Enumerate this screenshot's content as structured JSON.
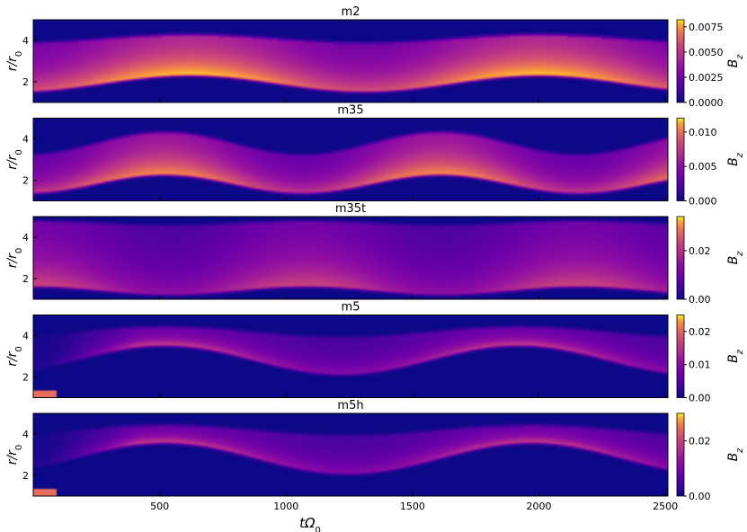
{
  "chart_data": [
    {
      "type": "heatmap",
      "title": "m2",
      "xlabel": "",
      "ylabel": "r/r0",
      "colorbar_label": "Bz",
      "colormap": "plasma",
      "xlim": [
        0,
        2510
      ],
      "ylim": [
        1.0,
        5.0
      ],
      "yticks": [
        2,
        4
      ],
      "colorbar_range": [
        0,
        0.0082
      ],
      "colorbar_ticks": [
        "0.0075",
        "0.0050",
        "0.0025",
        "0.0000"
      ],
      "colorbar_tick_values": [
        0.0075,
        0.005,
        0.0025,
        0.0
      ],
      "ridge": {
        "period": 1380,
        "peak_t": 620,
        "lower_edge_mean": 2.0,
        "lower_edge_amp": 0.4,
        "upper_edge_mean": 4.0,
        "upper_edge_amp": 0.2,
        "peak_strength": 0.95
      }
    },
    {
      "type": "heatmap",
      "title": "m35",
      "xlabel": "",
      "ylabel": "r/r0",
      "colorbar_label": "Bz",
      "colormap": "plasma",
      "xlim": [
        0,
        2510
      ],
      "ylim": [
        1.0,
        5.0
      ],
      "yticks": [
        2,
        4
      ],
      "colorbar_range": [
        0,
        0.012
      ],
      "colorbar_ticks": [
        "0.010",
        "0.005",
        "0.000"
      ],
      "colorbar_tick_values": [
        0.01,
        0.005,
        0.0
      ],
      "ridge": {
        "period": 1090,
        "peak_t": 520,
        "lower_edge_mean": 1.9,
        "lower_edge_amp": 0.45,
        "upper_edge_mean": 3.7,
        "upper_edge_amp": 0.55,
        "peak_strength": 0.8
      }
    },
    {
      "type": "heatmap",
      "title": "m35t",
      "xlabel": "",
      "ylabel": "r/r0",
      "colorbar_label": "Bz",
      "colormap": "plasma",
      "xlim": [
        0,
        2510
      ],
      "ylim": [
        1.0,
        5.0
      ],
      "yticks": [
        2,
        4
      ],
      "colorbar_range": [
        0,
        0.034
      ],
      "colorbar_ticks": [
        "0.02",
        "0.00"
      ],
      "colorbar_tick_values": [
        0.02,
        0.0
      ],
      "ridge": {
        "period": 1080,
        "peak_t": 1080,
        "lower_edge_mean": 1.5,
        "lower_edge_amp": 0.2,
        "upper_edge_mean": 4.6,
        "upper_edge_amp": 0.1,
        "peak_strength": 0.55
      }
    },
    {
      "type": "heatmap",
      "title": "m5",
      "xlabel": "",
      "ylabel": "r/r0",
      "colorbar_label": "Bz",
      "colormap": "plasma",
      "xlim": [
        0,
        2510
      ],
      "ylim": [
        1.0,
        5.0
      ],
      "yticks": [
        2,
        4
      ],
      "colorbar_range": [
        0,
        0.025
      ],
      "colorbar_ticks": [
        "0.02",
        "0.01",
        "0.00"
      ],
      "colorbar_tick_values": [
        0.02,
        0.01,
        0.0
      ],
      "ridge": {
        "period": 1400,
        "peak_t": 520,
        "lower_edge_mean": 2.9,
        "lower_edge_amp": 0.7,
        "upper_edge_mean": 4.1,
        "upper_edge_amp": 0.25,
        "peak_strength": 0.5
      }
    },
    {
      "type": "heatmap",
      "title": "m5h",
      "xlabel": "tΩ0",
      "ylabel": "r/r0",
      "colorbar_label": "Bz",
      "colormap": "plasma",
      "xlim": [
        0,
        2510
      ],
      "ylim": [
        1.0,
        5.0
      ],
      "yticks": [
        2,
        4
      ],
      "xticks": [
        500,
        1000,
        1500,
        2000,
        2500
      ],
      "colorbar_range": [
        0,
        0.03
      ],
      "colorbar_ticks": [
        "0.02",
        "0.00"
      ],
      "colorbar_tick_values": [
        0.02,
        0.0
      ],
      "ridge": {
        "period": 1450,
        "peak_t": 520,
        "lower_edge_mean": 2.9,
        "lower_edge_amp": 0.75,
        "upper_edge_mean": 4.1,
        "upper_edge_amp": 0.25,
        "peak_strength": 0.5
      }
    }
  ]
}
